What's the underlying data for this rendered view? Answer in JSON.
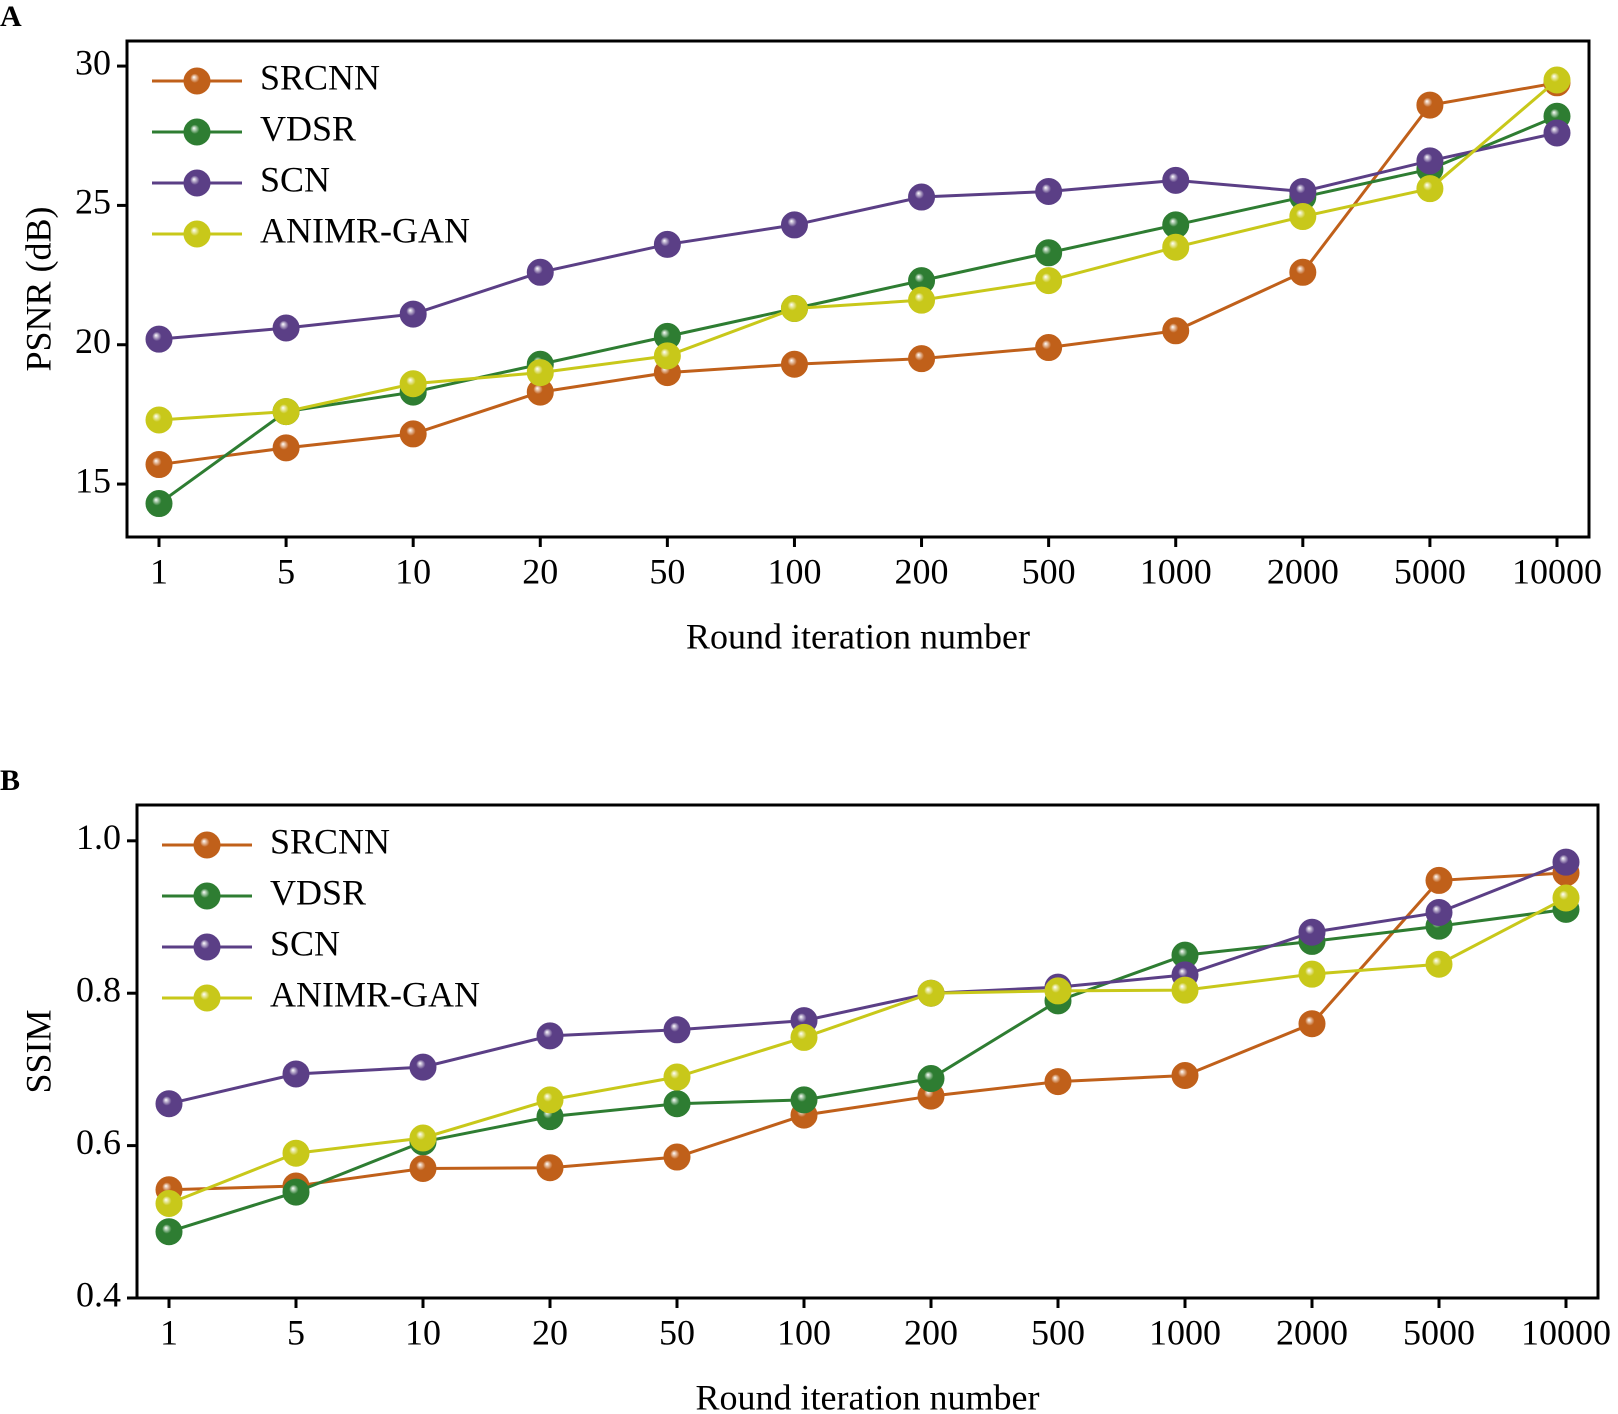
{
  "chart_data": [
    {
      "type": "line",
      "panel": "A",
      "y_label": "PSNR (dB)",
      "x_label": "Round iteration number",
      "categories": [
        "1",
        "5",
        "10",
        "20",
        "50",
        "100",
        "200",
        "500",
        "1000",
        "2000",
        "5000",
        "10000"
      ],
      "ylim": [
        13.1,
        30.9
      ],
      "yticks": [
        15,
        20,
        25,
        30
      ],
      "legend": "upper-left",
      "series": [
        {
          "name": "SRCNN",
          "color": "#c0601a",
          "values": [
            15.7,
            16.3,
            16.8,
            18.3,
            19.0,
            19.3,
            19.5,
            19.9,
            20.5,
            22.6,
            28.6,
            29.4
          ]
        },
        {
          "name": "VDSR",
          "color": "#2e7d32",
          "values": [
            14.3,
            17.6,
            18.3,
            19.3,
            20.3,
            21.3,
            22.3,
            23.3,
            24.3,
            25.3,
            26.3,
            28.2
          ]
        },
        {
          "name": "SCN",
          "color": "#5b3f86",
          "values": [
            20.2,
            20.6,
            21.1,
            22.6,
            23.6,
            24.3,
            25.3,
            25.5,
            25.9,
            25.5,
            26.6,
            27.6
          ]
        },
        {
          "name": "ANIMR-GAN",
          "color": "#c8c81a",
          "values": [
            17.3,
            17.6,
            18.6,
            19.0,
            19.6,
            21.3,
            21.6,
            22.3,
            23.5,
            24.6,
            25.6,
            29.5
          ]
        }
      ]
    },
    {
      "type": "line",
      "panel": "B",
      "y_label": "SSIM",
      "x_label": "Round iteration number",
      "categories": [
        "1",
        "5",
        "10",
        "20",
        "50",
        "100",
        "200",
        "500",
        "1000",
        "2000",
        "5000",
        "10000"
      ],
      "ylim": [
        0.4,
        1.047
      ],
      "yticks": [
        0.4,
        0.6,
        0.8,
        {
          "value": 1,
          "label": "1.0"
        }
      ],
      "legend": "upper-left",
      "series": [
        {
          "name": "SRCNN",
          "color": "#c0601a",
          "values": [
            0.542,
            0.547,
            0.57,
            0.571,
            0.585,
            0.64,
            0.665,
            0.684,
            0.692,
            0.76,
            0.948,
            0.958
          ]
        },
        {
          "name": "VDSR",
          "color": "#2e7d32",
          "values": [
            0.487,
            0.539,
            0.605,
            0.638,
            0.655,
            0.66,
            0.688,
            0.79,
            0.85,
            0.868,
            0.888,
            0.91
          ]
        },
        {
          "name": "SCN",
          "color": "#5b3f86",
          "values": [
            0.655,
            0.694,
            0.703,
            0.744,
            0.752,
            0.764,
            0.8,
            0.808,
            0.824,
            0.88,
            0.906,
            0.972
          ]
        },
        {
          "name": "ANIMR-GAN",
          "color": "#c8c81a",
          "values": [
            0.524,
            0.59,
            0.61,
            0.66,
            0.69,
            0.742,
            0.8,
            0.803,
            0.804,
            0.825,
            0.838,
            0.925
          ]
        }
      ]
    }
  ]
}
